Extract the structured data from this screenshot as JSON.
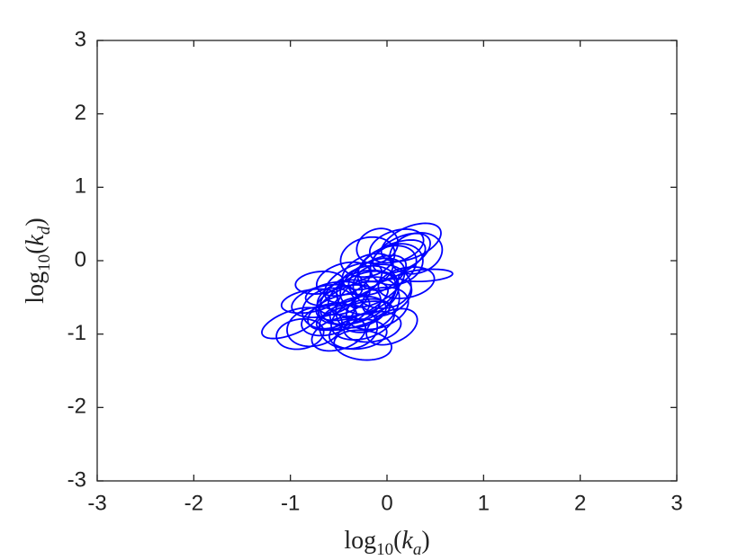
{
  "chart_data": {
    "type": "ellipse",
    "x_label": [
      "log",
      "10",
      "(",
      "k",
      "a",
      ")"
    ],
    "y_label": [
      "log",
      "10",
      "(",
      "k",
      "d",
      ")"
    ],
    "xlim": [
      -3,
      3
    ],
    "ylim": [
      -3,
      3
    ],
    "xticks": [
      -3,
      -2,
      -1,
      0,
      1,
      2,
      3
    ],
    "yticks": [
      -3,
      -2,
      -1,
      0,
      1,
      2,
      3
    ],
    "color": "#0000ff",
    "ellipses": [
      [
        -0.3,
        -0.5,
        0.45,
        0.3,
        40
      ],
      [
        -0.25,
        -0.45,
        0.4,
        0.25,
        35
      ],
      [
        -0.2,
        -0.4,
        0.35,
        0.3,
        50
      ],
      [
        -0.35,
        -0.55,
        0.4,
        0.2,
        30
      ],
      [
        -0.15,
        -0.3,
        0.4,
        0.25,
        45
      ],
      [
        -0.4,
        -0.6,
        0.35,
        0.25,
        25
      ],
      [
        -0.1,
        -0.2,
        0.35,
        0.2,
        40
      ],
      [
        -0.3,
        -0.7,
        0.3,
        0.2,
        20
      ],
      [
        -0.45,
        -0.5,
        0.3,
        0.2,
        35
      ],
      [
        0.0,
        -0.1,
        0.35,
        0.25,
        45
      ],
      [
        -0.5,
        -0.7,
        0.35,
        0.2,
        30
      ],
      [
        -0.2,
        -0.6,
        0.4,
        0.3,
        60
      ],
      [
        0.05,
        0.0,
        0.4,
        0.2,
        35
      ],
      [
        -0.55,
        -0.45,
        0.3,
        0.15,
        15
      ],
      [
        -0.25,
        -0.8,
        0.35,
        0.25,
        30
      ],
      [
        -0.05,
        -0.35,
        0.3,
        0.3,
        0
      ],
      [
        -0.35,
        -0.3,
        0.35,
        0.2,
        40
      ],
      [
        0.1,
        -0.05,
        0.3,
        0.25,
        50
      ],
      [
        -0.6,
        -0.8,
        0.3,
        0.2,
        25
      ],
      [
        -0.15,
        -0.9,
        0.3,
        0.2,
        15
      ],
      [
        -0.4,
        -0.9,
        0.3,
        0.3,
        40
      ],
      [
        0.15,
        0.1,
        0.35,
        0.2,
        40
      ],
      [
        -0.65,
        -0.55,
        0.35,
        0.2,
        20
      ],
      [
        -0.3,
        -1.0,
        0.3,
        0.2,
        10
      ],
      [
        -0.1,
        -0.65,
        0.35,
        0.25,
        35
      ],
      [
        -0.45,
        -0.25,
        0.3,
        0.2,
        30
      ],
      [
        0.0,
        -0.5,
        0.3,
        0.2,
        45
      ],
      [
        -0.7,
        -0.3,
        0.25,
        0.15,
        10
      ],
      [
        -0.2,
        -0.15,
        0.3,
        0.2,
        40
      ],
      [
        -0.5,
        -1.0,
        0.3,
        0.2,
        30
      ],
      [
        0.2,
        -0.3,
        0.3,
        0.2,
        20
      ],
      [
        -0.6,
        -0.65,
        0.3,
        0.25,
        45
      ],
      [
        0.1,
        0.2,
        0.3,
        0.2,
        30
      ],
      [
        -0.35,
        -0.75,
        0.4,
        0.15,
        20
      ],
      [
        -0.8,
        -0.55,
        0.3,
        0.15,
        15
      ],
      [
        -0.25,
        -1.15,
        0.3,
        0.2,
        -10
      ],
      [
        0.25,
        0.25,
        0.35,
        0.2,
        35
      ],
      [
        0.3,
        0.1,
        0.3,
        0.25,
        50
      ],
      [
        -0.2,
        0.05,
        0.3,
        0.25,
        40
      ],
      [
        0.4,
        -0.2,
        0.28,
        0.08,
        5
      ],
      [
        -1.0,
        -0.85,
        0.33,
        0.15,
        30
      ],
      [
        -0.9,
        -1.0,
        0.25,
        0.2,
        20
      ],
      [
        0.05,
        -0.9,
        0.3,
        0.2,
        40
      ],
      [
        -0.75,
        -0.9,
        0.3,
        0.25,
        35
      ],
      [
        -0.1,
        0.2,
        0.25,
        0.2,
        60
      ]
    ]
  }
}
